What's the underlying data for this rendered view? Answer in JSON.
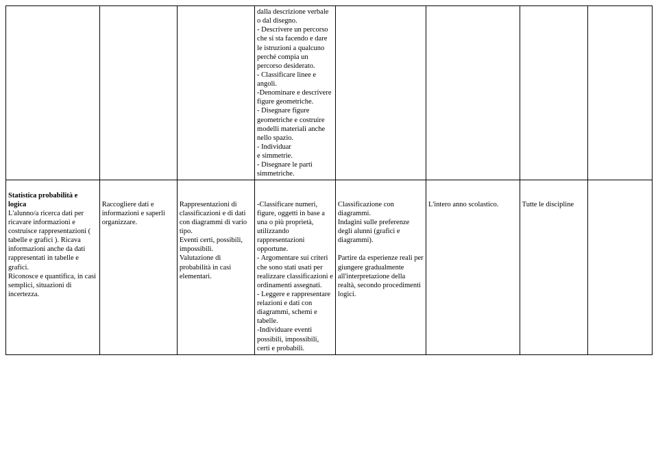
{
  "row1": {
    "c1": "",
    "c2": "",
    "c3": "",
    "c4": "dalla descrizione verbale o dal disegno.\n- Descrivere un percorso che si sta facendo e dare le istruzioni a qualcuno perché compia un percorso desiderato.\n- Classificare linee e angoli.\n-Denominare e descrivere figure geometriche.\n- Disegnare figure geometriche e costruire modelli materiali anche nello spazio.\n- Individuar\ne simmetrie.\n- Disegnare le parti simmetriche.",
    "c5": "",
    "c6": "",
    "c7": "",
    "c8": ""
  },
  "row2": {
    "c1_heading": "Statistica probabilità e logica",
    "c1_body": "L'alunno/a ricerca dati per ricavare informazioni e costruisce rappresentazioni ( tabelle e grafici ). Ricava informazioni anche da dati rappresentati in tabelle e grafici.\nRiconosce e quantifica, in casi semplici, situazioni di incertezza.",
    "c2": "Raccogliere dati e informazioni e saperli organizzare.",
    "c3": "Rappresentazioni di classificazioni e di dati con diagrammi di vario tipo.\nEventi certi, possibili, impossibili.\nValutazione di probabilità in casi elementari.",
    "c4": "-Classificare numeri, figure, oggetti in base a una o più proprietà, utilizzando rappresentazioni opportune.\n  - Argomentare sui criteri che sono stati usati per realizzare classificazioni e ordinamenti assegnati.\n- Leggere e rappresentare relazioni e dati con diagrammi, schemi e tabelle.\n-Individuare eventi possibili, impossibili, certi e probabili.",
    "c5": "Classificazione con diagrammi.\nIndagini sulle preferenze degli alunni (grafici e diagrammi).\n\nPartire da esperienze reali per giungere gradualmente all'interpretazione della realtà, secondo procedimenti logici.",
    "c6": "L'intero anno scolastico.",
    "c7": "Tutte le discipline"
  }
}
